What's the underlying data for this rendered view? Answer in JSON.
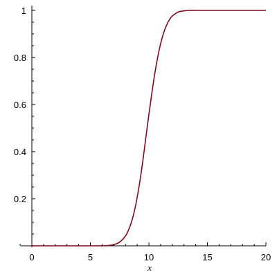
{
  "chart_data": {
    "type": "line",
    "title": "",
    "xlabel": "x",
    "ylabel": "",
    "xlim": [
      0,
      20
    ],
    "ylim": [
      0,
      1
    ],
    "grid": false,
    "legend": "none",
    "x_ticks_major": [
      "0",
      "5",
      "10",
      "15",
      "20"
    ],
    "y_ticks_major": [
      "0.2",
      "0.4",
      "0.6",
      "0.8",
      "1"
    ],
    "x_minor_step": 1,
    "y_minor_step": 0.05,
    "series": [
      {
        "color": "#7f0a1e",
        "x": [
          0,
          1,
          2,
          3,
          4,
          5,
          6,
          6.5,
          7,
          7.5,
          8,
          8.25,
          8.5,
          8.75,
          9,
          9.25,
          9.5,
          9.75,
          10,
          10.25,
          10.5,
          10.75,
          11,
          11.25,
          11.5,
          11.75,
          12,
          12.5,
          13,
          13.5,
          14,
          15,
          16,
          17,
          18,
          19,
          20
        ],
        "y": [
          0,
          0,
          0,
          0,
          0,
          0,
          0.0002,
          0.0012,
          0.005,
          0.016,
          0.042,
          0.066,
          0.099,
          0.145,
          0.206,
          0.28,
          0.367,
          0.463,
          0.558,
          0.647,
          0.73,
          0.8,
          0.858,
          0.903,
          0.936,
          0.96,
          0.976,
          0.993,
          0.998,
          1,
          1,
          1,
          1,
          1,
          1,
          1,
          1
        ]
      }
    ]
  }
}
